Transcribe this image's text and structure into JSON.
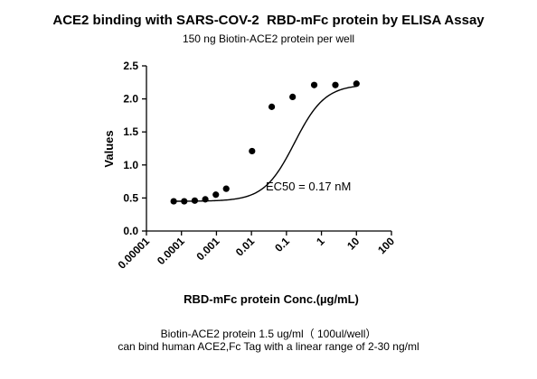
{
  "chart_data": {
    "type": "scatter",
    "title": "ACE2 binding with SARS-COV-2  RBD-mFc protein by ELISA Assay",
    "subtitle": "150 ng Biotin-ACE2 protein per well",
    "xlabel": "RBD-mFc protein Conc.(µg/mL)",
    "ylabel": "Values",
    "x_scale": "log",
    "xlim": [
      1e-05,
      100
    ],
    "ylim": [
      0,
      2.5
    ],
    "x_ticks": [
      1e-05,
      0.0001,
      0.001,
      0.01,
      0.1,
      1,
      10,
      100
    ],
    "x_tick_labels": [
      "0.00001",
      "0.0001",
      "0.001",
      "0.01",
      "0.1",
      "1",
      "10",
      "100"
    ],
    "y_ticks": [
      0,
      0.5,
      1,
      1.5,
      2,
      2.5
    ],
    "y_tick_labels": [
      "0.0",
      "0.5",
      "1.0",
      "1.5",
      "2.0",
      "2.5"
    ],
    "grid": false,
    "series": [
      {
        "x": [
          6e-05,
          0.00012,
          0.00024,
          0.00048,
          0.00096,
          0.0019,
          0.0104,
          0.038,
          0.15,
          0.62,
          2.5,
          10
        ],
        "y": [
          0.45,
          0.45,
          0.46,
          0.48,
          0.55,
          0.64,
          1.21,
          1.88,
          2.03,
          2.21,
          2.21,
          2.23
        ]
      }
    ],
    "fit": {
      "bottom": 0.45,
      "top": 2.22,
      "ec50": 0.17,
      "hill_slope": 1.0
    },
    "annotation": "EC50 = 0.17 nM"
  },
  "notes": {
    "line1": "Biotin-ACE2 protein 1.5 ug/ml（ 100ul/well）",
    "line2": "can bind human ACE2,Fc Tag with a linear range of 2-30 ng/ml"
  }
}
